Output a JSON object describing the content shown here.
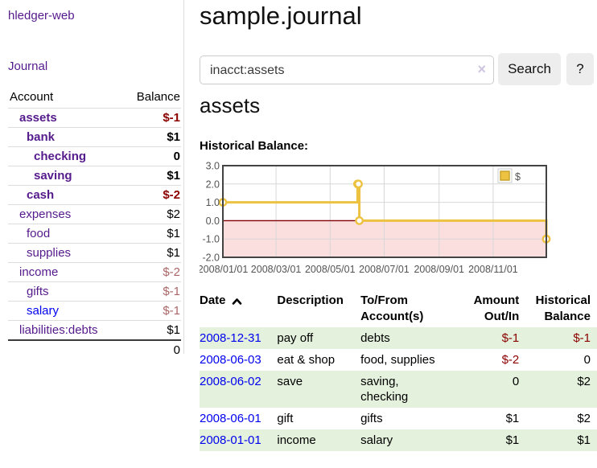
{
  "app": {
    "title": "hledger-web"
  },
  "sidebar": {
    "journal_link": "Journal",
    "account_header": "Account",
    "balance_header": "Balance",
    "accounts": [
      {
        "name": "assets",
        "depth": 1,
        "bold": true,
        "balance": "$-1",
        "balance_style": "neg-strong",
        "link_style": "purple"
      },
      {
        "name": "bank",
        "depth": 2,
        "bold": true,
        "balance": "$1",
        "balance_style": "plain",
        "link_style": "purple"
      },
      {
        "name": "checking",
        "depth": 3,
        "bold": true,
        "balance": "0",
        "balance_style": "plain",
        "link_style": "purple"
      },
      {
        "name": "saving",
        "depth": 3,
        "bold": true,
        "balance": "$1",
        "balance_style": "plain",
        "link_style": "purple"
      },
      {
        "name": "cash",
        "depth": 2,
        "bold": true,
        "balance": "$-2",
        "balance_style": "neg-strong",
        "link_style": "purple"
      },
      {
        "name": "expenses",
        "depth": 1,
        "bold": false,
        "balance": "$2",
        "balance_style": "plain",
        "link_style": "purple"
      },
      {
        "name": "food",
        "depth": 2,
        "bold": false,
        "balance": "$1",
        "balance_style": "plain",
        "link_style": "purple"
      },
      {
        "name": "supplies",
        "depth": 2,
        "bold": false,
        "balance": "$1",
        "balance_style": "plain",
        "link_style": "purple"
      },
      {
        "name": "income",
        "depth": 1,
        "bold": false,
        "balance": "$-2",
        "balance_style": "neg-soft",
        "link_style": "purple"
      },
      {
        "name": "gifts",
        "depth": 2,
        "bold": false,
        "balance": "$-1",
        "balance_style": "neg-soft",
        "link_style": "purple"
      },
      {
        "name": "salary",
        "depth": 2,
        "bold": false,
        "balance": "$-1",
        "balance_style": "neg-soft",
        "link_style": "blue"
      },
      {
        "name": "liabilities:debts",
        "depth": 1,
        "bold": false,
        "balance": "$1",
        "balance_style": "plain",
        "link_style": "purple"
      }
    ],
    "total": "0"
  },
  "main": {
    "title": "sample.journal",
    "search": {
      "value": "inacct:assets",
      "clear_icon": "×",
      "button": "Search",
      "help_button": "?"
    },
    "account_heading": "assets",
    "chart_label": "Historical Balance:"
  },
  "chart_data": {
    "type": "line",
    "title": "Historical Balance",
    "step": true,
    "legend": "$",
    "legend_position": "top-right",
    "x_range": [
      "2008-01-01",
      "2008-12-31"
    ],
    "x_ticks": [
      "2008/01/01",
      "2008/03/01",
      "2008/05/01",
      "2008/07/01",
      "2008/09/01",
      "2008/11/01"
    ],
    "y_ticks": [
      3.0,
      2.0,
      1.0,
      0.0,
      -1.0,
      -2.0
    ],
    "ylim": [
      -2,
      3
    ],
    "grid": true,
    "series": [
      {
        "name": "$",
        "points": [
          [
            "2008-01-01",
            1
          ],
          [
            "2008-06-01",
            2
          ],
          [
            "2008-06-02",
            2
          ],
          [
            "2008-06-03",
            0
          ],
          [
            "2008-12-31",
            -1
          ]
        ]
      }
    ]
  },
  "register": {
    "headers": {
      "date": "Date",
      "sort_icon": "chevron-up",
      "description": "Description",
      "accounts": "To/From Account(s)",
      "amount": "Amount Out/In",
      "balance": "Historical Balance"
    },
    "rows": [
      {
        "date": "2008-12-31",
        "description": "pay off",
        "accounts": "debts",
        "amount": "$-1",
        "amount_style": "neg-strong",
        "balance": "$-1",
        "balance_style": "neg-strong",
        "shaded": true
      },
      {
        "date": "2008-06-03",
        "description": "eat & shop",
        "accounts": "food, supplies",
        "amount": "$-2",
        "amount_style": "neg-strong",
        "balance": "0",
        "balance_style": "plain",
        "shaded": false
      },
      {
        "date": "2008-06-02",
        "description": "save",
        "accounts": "saving, checking",
        "amount": "0",
        "amount_style": "plain",
        "balance": "$2",
        "balance_style": "plain",
        "shaded": true
      },
      {
        "date": "2008-06-01",
        "description": "gift",
        "accounts": "gifts",
        "amount": "$1",
        "amount_style": "plain",
        "balance": "$2",
        "balance_style": "plain",
        "shaded": false
      },
      {
        "date": "2008-01-01",
        "description": "income",
        "accounts": "salary",
        "amount": "$1",
        "amount_style": "plain",
        "balance": "$1",
        "balance_style": "plain",
        "shaded": true
      }
    ]
  },
  "colors": {
    "link_purple": "#551a8b",
    "link_blue": "#0000ee",
    "negative_strong": "#8b0000",
    "negative_soft": "#aa6666",
    "row_green": "#e4f1dc",
    "chart_line": "#edc240",
    "chart_marker_fill": "#ffffff",
    "chart_negative_fill": "#fbdede",
    "chart_zero_line": "#800000",
    "chart_grid": "#d7d7d7",
    "chart_border": "#434343",
    "chart_text": "#545454",
    "legend_box_border": "#cccccc",
    "legend_swatch_border": "#c9a42e",
    "button_bg": "#ededed",
    "border_light": "#dddddd"
  }
}
